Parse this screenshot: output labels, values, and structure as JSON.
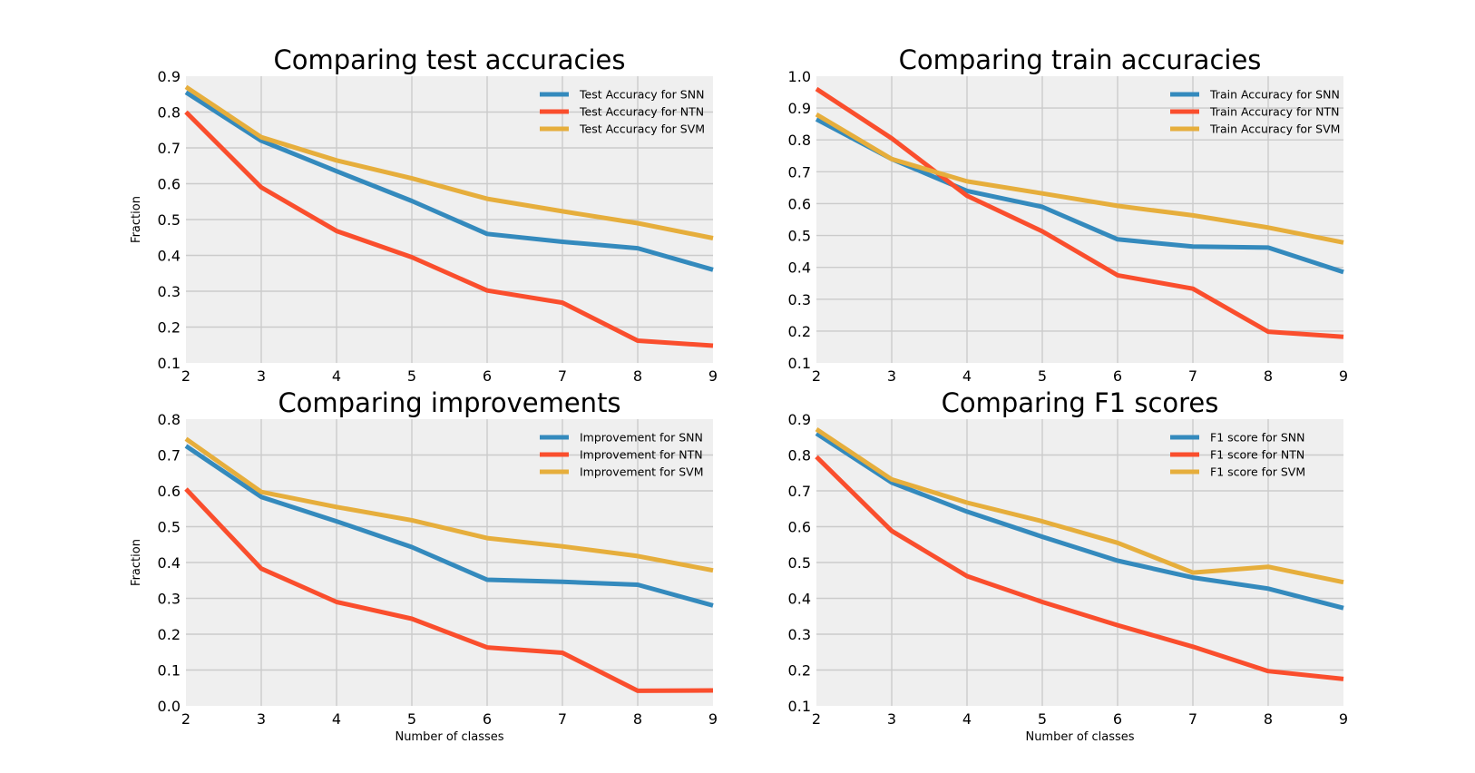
{
  "chart_data": [
    {
      "type": "line",
      "title": "Comparing test accuracies",
      "xlabel": "",
      "ylabel": "Fraction",
      "x": [
        2,
        3,
        4,
        5,
        6,
        7,
        8,
        9
      ],
      "xlim": [
        2,
        9
      ],
      "ylim": [
        0.1,
        0.9
      ],
      "xticks": [
        "2",
        "3",
        "4",
        "5",
        "6",
        "7",
        "8",
        "9"
      ],
      "yticks": [
        "0.1",
        "0.2",
        "0.3",
        "0.4",
        "0.5",
        "0.6",
        "0.7",
        "0.8",
        "0.9"
      ],
      "grid": true,
      "legend_position": "top-right",
      "series": [
        {
          "name": "Test Accuracy for SNN",
          "color": "#348abd",
          "values": [
            0.855,
            0.72,
            0.635,
            0.552,
            0.46,
            0.438,
            0.42,
            0.36
          ]
        },
        {
          "name": "Test Accuracy for NTN",
          "color": "#fa4e2d",
          "values": [
            0.8,
            0.59,
            0.468,
            0.395,
            0.302,
            0.268,
            0.162,
            0.148
          ]
        },
        {
          "name": "Test Accuracy for SVM",
          "color": "#e6ae3c",
          "values": [
            0.87,
            0.73,
            0.665,
            0.615,
            0.558,
            0.523,
            0.49,
            0.448
          ]
        }
      ]
    },
    {
      "type": "line",
      "title": "Comparing train accuracies",
      "xlabel": "",
      "ylabel": "",
      "x": [
        2,
        3,
        4,
        5,
        6,
        7,
        8,
        9
      ],
      "xlim": [
        2,
        9
      ],
      "ylim": [
        0.1,
        1.0
      ],
      "xticks": [
        "2",
        "3",
        "4",
        "5",
        "6",
        "7",
        "8",
        "9"
      ],
      "yticks": [
        "0.1",
        "0.2",
        "0.3",
        "0.4",
        "0.5",
        "0.6",
        "0.7",
        "0.8",
        "0.9",
        "1.0"
      ],
      "grid": true,
      "legend_position": "top-right",
      "series": [
        {
          "name": "Train Accuracy for SNN",
          "color": "#348abd",
          "values": [
            0.865,
            0.74,
            0.64,
            0.59,
            0.488,
            0.465,
            0.462,
            0.385
          ]
        },
        {
          "name": "Train Accuracy for NTN",
          "color": "#fa4e2d",
          "values": [
            0.96,
            0.805,
            0.625,
            0.513,
            0.375,
            0.333,
            0.198,
            0.182
          ]
        },
        {
          "name": "Train Accuracy for SVM",
          "color": "#e6ae3c",
          "values": [
            0.88,
            0.74,
            0.67,
            0.632,
            0.593,
            0.563,
            0.525,
            0.478
          ]
        }
      ]
    },
    {
      "type": "line",
      "title": "Comparing improvements",
      "xlabel": "Number of classes",
      "ylabel": "Fraction",
      "x": [
        2,
        3,
        4,
        5,
        6,
        7,
        8,
        9
      ],
      "xlim": [
        2,
        9
      ],
      "ylim": [
        0.0,
        0.8
      ],
      "xticks": [
        "2",
        "3",
        "4",
        "5",
        "6",
        "7",
        "8",
        "9"
      ],
      "yticks": [
        "0.0",
        "0.1",
        "0.2",
        "0.3",
        "0.4",
        "0.5",
        "0.6",
        "0.7",
        "0.8"
      ],
      "grid": true,
      "legend_position": "top-right",
      "series": [
        {
          "name": "Improvement for SNN",
          "color": "#348abd",
          "values": [
            0.725,
            0.583,
            0.515,
            0.443,
            0.352,
            0.346,
            0.338,
            0.28
          ]
        },
        {
          "name": "Improvement for NTN",
          "color": "#fa4e2d",
          "values": [
            0.605,
            0.383,
            0.29,
            0.243,
            0.163,
            0.148,
            0.042,
            0.043
          ]
        },
        {
          "name": "Improvement for SVM",
          "color": "#e6ae3c",
          "values": [
            0.745,
            0.597,
            0.555,
            0.518,
            0.468,
            0.445,
            0.418,
            0.378
          ]
        }
      ]
    },
    {
      "type": "line",
      "title": "Comparing F1 scores",
      "xlabel": "Number of classes",
      "ylabel": "",
      "x": [
        2,
        3,
        4,
        5,
        6,
        7,
        8,
        9
      ],
      "xlim": [
        2,
        9
      ],
      "ylim": [
        0.1,
        0.9
      ],
      "xticks": [
        "2",
        "3",
        "4",
        "5",
        "6",
        "7",
        "8",
        "9"
      ],
      "yticks": [
        "0.1",
        "0.2",
        "0.3",
        "0.4",
        "0.5",
        "0.6",
        "0.7",
        "0.8",
        "0.9"
      ],
      "grid": true,
      "legend_position": "top-right",
      "series": [
        {
          "name": "F1 score for SNN",
          "color": "#348abd",
          "values": [
            0.86,
            0.723,
            0.642,
            0.572,
            0.505,
            0.458,
            0.427,
            0.373
          ]
        },
        {
          "name": "F1 score for NTN",
          "color": "#fa4e2d",
          "values": [
            0.795,
            0.588,
            0.462,
            0.39,
            0.325,
            0.265,
            0.197,
            0.175
          ]
        },
        {
          "name": "F1 score for SVM",
          "color": "#e6ae3c",
          "values": [
            0.872,
            0.732,
            0.667,
            0.615,
            0.555,
            0.472,
            0.488,
            0.445
          ]
        }
      ]
    }
  ]
}
